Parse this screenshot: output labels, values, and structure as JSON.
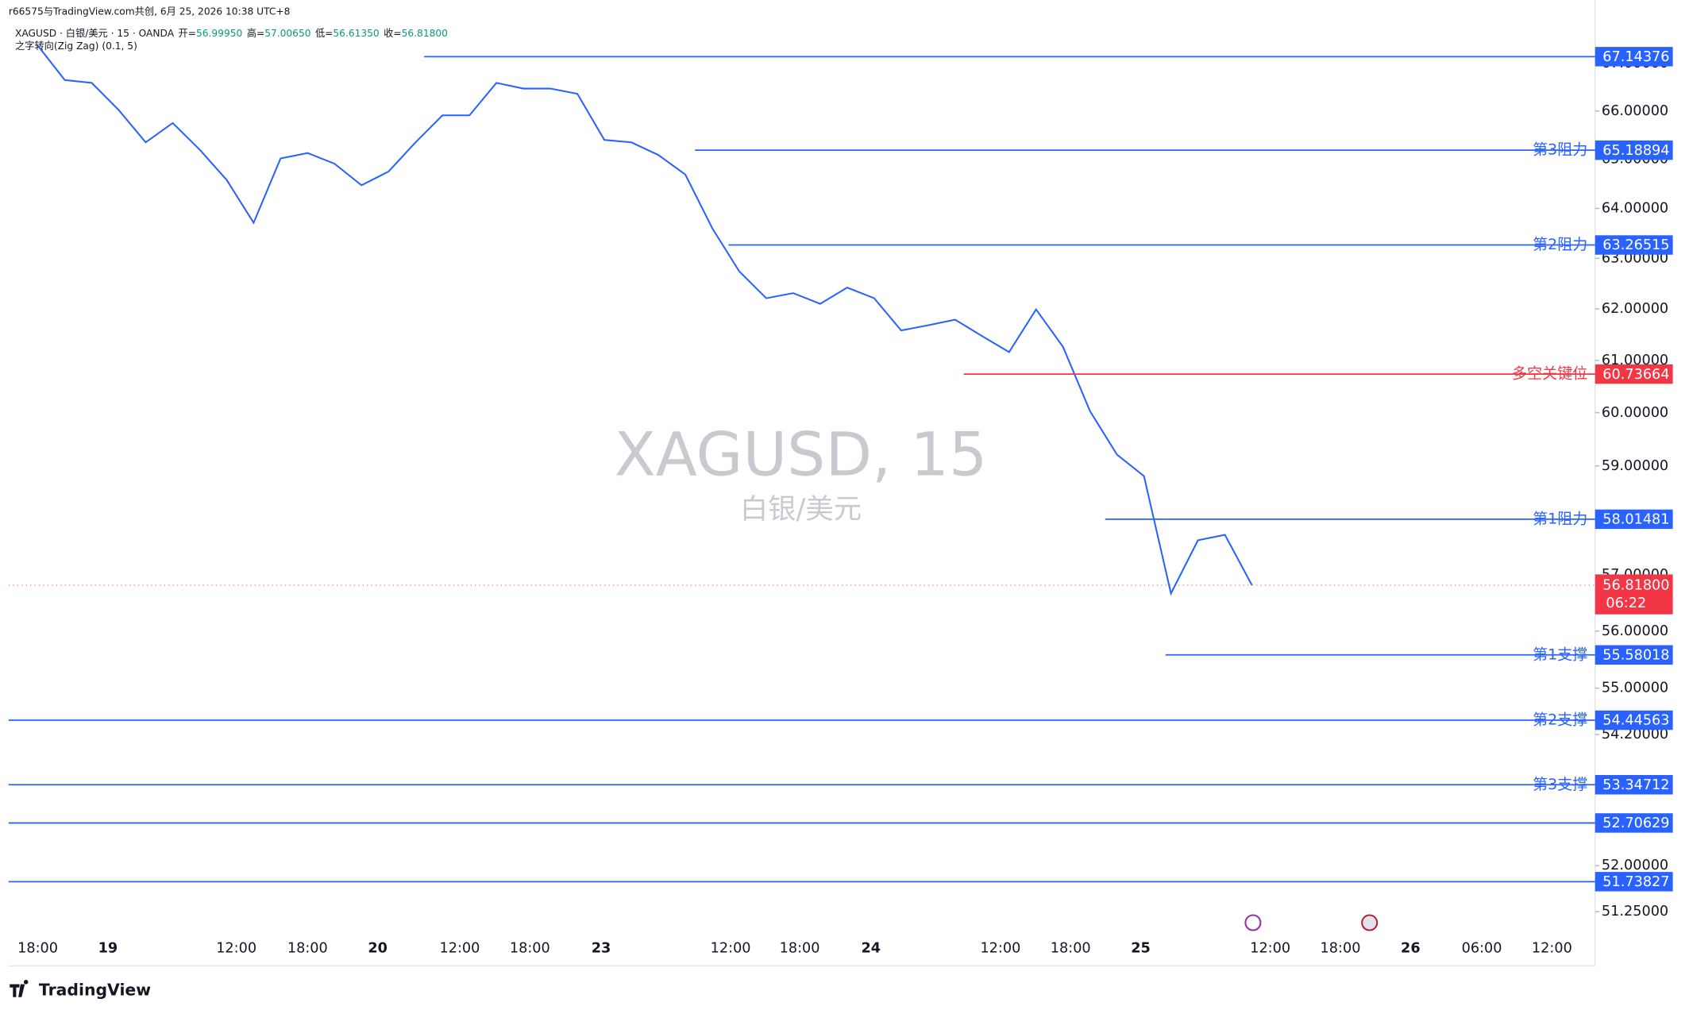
{
  "header": {
    "attribution": "r66575与TradingView.com共创, 6月 25, 2026 10:38 UTC+8",
    "symbol": "XAGUSD · 白银/美元 · 15 · OANDA",
    "ohlc": [
      {
        "name": "开=",
        "value": 56.9995,
        "value_label": "56.99950"
      },
      {
        "name": "高=",
        "value": 57.0065,
        "value_label": "57.00650"
      },
      {
        "name": "低=",
        "value": 56.6135,
        "value_label": "56.61350"
      },
      {
        "name": "收=",
        "value": 56.818,
        "value_label": "56.81800"
      }
    ],
    "indicator": "之字转向(Zig Zag) (0.1, 5)"
  },
  "watermark": {
    "symbol": "XAGUSD, 15",
    "name": "白银/美元"
  },
  "footer": {
    "brand": "TradingView"
  },
  "chart_data": {
    "type": "line",
    "color": "#2962ff",
    "log_scale": true,
    "time_labels": [
      "18:00",
      "19",
      "12:00",
      "18:00",
      "20",
      "12:00",
      "18:00",
      "23",
      "12:00",
      "18:00",
      "24",
      "12:00",
      "18:00",
      "25",
      "12:00",
      "18:00",
      "26",
      "06:00",
      "12:00"
    ],
    "values": [
      67.38,
      66.65,
      66.59,
      66.02,
      65.35,
      65.75,
      65.2,
      64.58,
      63.71,
      65.02,
      65.13,
      64.91,
      64.47,
      64.75,
      65.35,
      65.91,
      65.91,
      66.59,
      66.47,
      66.47,
      66.36,
      65.4,
      65.35,
      65.09,
      64.69,
      63.6,
      62.74,
      62.21,
      62.31,
      62.1,
      62.42,
      62.21,
      61.58,
      61.68,
      61.79,
      61.47,
      61.16,
      61.99,
      61.26,
      60.03,
      59.21,
      58.81,
      56.67,
      57.63,
      57.73,
      56.82
    ],
    "ylim": [
      50.95,
      68.17
    ],
    "yticks": [
      {
        "value": 67,
        "label": "67.00000"
      },
      {
        "value": 66,
        "label": "66.00000"
      },
      {
        "value": 65,
        "label": "65.00000"
      },
      {
        "value": 64,
        "label": "64.00000"
      },
      {
        "value": 63,
        "label": "63.00000"
      },
      {
        "value": 62,
        "label": "62.00000"
      },
      {
        "value": 61,
        "label": "61.00000"
      },
      {
        "value": 60,
        "label": "60.00000"
      },
      {
        "value": 59,
        "label": "59.00000"
      },
      {
        "value": 57,
        "label": "57.00000"
      },
      {
        "value": 56,
        "label": "56.00000"
      },
      {
        "value": 55,
        "label": "55.00000"
      },
      {
        "value": 54.2,
        "label": "54.20000"
      },
      {
        "value": 52,
        "label": "52.00000"
      },
      {
        "value": 51.25,
        "label": "51.25000"
      }
    ],
    "levels": [
      {
        "value": 67.14376,
        "color": "#2962ff"
      },
      {
        "name": "第3阻力",
        "value": 65.18894,
        "color": "#2962ff"
      },
      {
        "name": "第2阻力",
        "value": 63.26515,
        "color": "#2962ff"
      },
      {
        "name": "多空关键位",
        "value": 60.73664,
        "color": "#f23645"
      },
      {
        "name": "第1阻力",
        "value": 58.01481,
        "color": "#2962ff"
      },
      {
        "name": "第1支撑",
        "value": 55.58018,
        "color": "#2962ff"
      },
      {
        "name": "第2支撑",
        "value": 54.44563,
        "color": "#2962ff"
      },
      {
        "name": "第3支撑",
        "value": 53.34712,
        "color": "#2962ff"
      },
      {
        "value": 52.70629,
        "color": "#2962ff"
      },
      {
        "value": 51.73827,
        "color": "#2962ff"
      }
    ],
    "last_price": {
      "value": 56.818,
      "label": "56.81800",
      "countdown": "06:22",
      "color": "#f23645"
    }
  }
}
